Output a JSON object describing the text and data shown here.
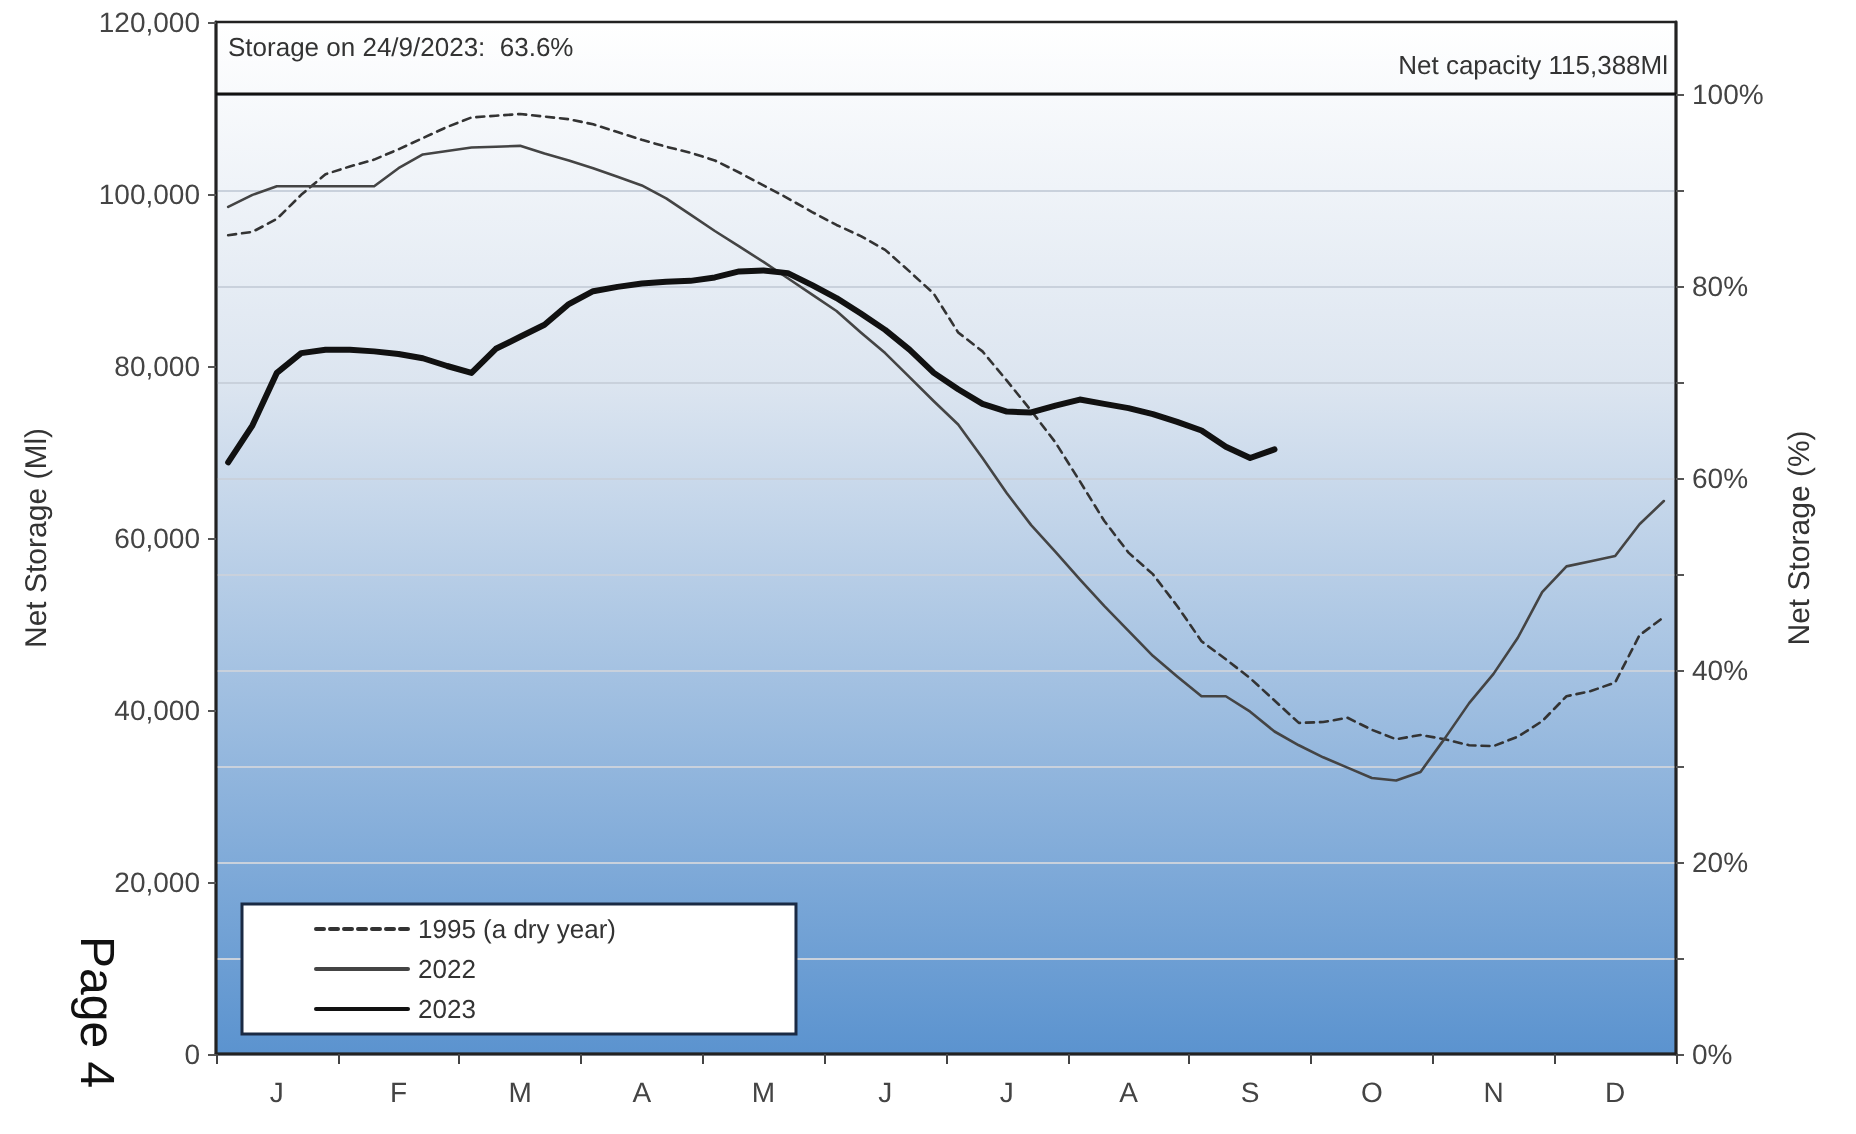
{
  "chart_data": {
    "type": "line",
    "ylabel": "Net Storage (Ml)",
    "y2label": "Net Storage (%)",
    "annotations": [
      "Storage on 24/9/2023:  63.6%",
      "Page 4"
    ],
    "categories": [
      null,
      null,
      "J",
      null,
      null,
      null,
      null,
      "F",
      null,
      null,
      null,
      null,
      "M",
      null,
      null,
      null,
      null,
      "A",
      null,
      null,
      null,
      null,
      "M",
      null,
      null,
      null,
      null,
      "J",
      null,
      null,
      null,
      null,
      "J",
      null,
      null,
      null,
      null,
      "A",
      null,
      null,
      null,
      null,
      "S",
      null,
      null,
      null,
      null,
      "O",
      null,
      null,
      null,
      null,
      "N",
      null,
      null,
      null,
      null,
      "D",
      null,
      null
    ],
    "ylim": [
      0,
      120000
    ],
    "yticks": [
      0,
      {
        "value": 20000,
        "label": "20,000"
      },
      {
        "value": 40000,
        "label": "40,000"
      },
      {
        "value": 60000,
        "label": "60,000"
      },
      {
        "value": 80000,
        "label": "80,000"
      },
      {
        "value": 100000,
        "label": "100,000"
      },
      {
        "value": 120000,
        "label": "120,000"
      }
    ],
    "y2lim": [
      0,
      107.5
    ],
    "y2ticks": [
      {
        "value": 0,
        "label": "0%"
      },
      {
        "value": 10,
        "label": null
      },
      {
        "value": 20,
        "label": "20%"
      },
      {
        "value": 30,
        "label": null
      },
      {
        "value": 40,
        "label": "40%"
      },
      {
        "value": 50,
        "label": null
      },
      {
        "value": 60,
        "label": "60%"
      },
      {
        "value": 70,
        "label": null
      },
      {
        "value": 80,
        "label": "80%"
      },
      {
        "value": 90,
        "label": null
      },
      {
        "value": 100,
        "label": "100%"
      }
    ],
    "ref_lines": [
      {
        "axis": "y2",
        "value": 100,
        "label": "Net capacity 115,388Ml",
        "color": "#111111"
      }
    ],
    "grid": true,
    "legend": "bottom left",
    "series": [
      {
        "name": "1995 (a dry year)",
        "color": "#333333",
        "line_style": "dashed",
        "values": [
          95200,
          95600,
          97100,
          99900,
          102300,
          103200,
          104000,
          105200,
          106500,
          107800,
          108900,
          109100,
          109300,
          109000,
          108700,
          108100,
          107200,
          106300,
          105500,
          104800,
          103900,
          102500,
          101000,
          99500,
          97900,
          96400,
          95100,
          93500,
          91000,
          88400,
          83900,
          81700,
          78300,
          74800,
          71100,
          66600,
          62000,
          58300,
          55800,
          52100,
          48000,
          45900,
          43700,
          41100,
          38500,
          38600,
          39100,
          37700,
          36600,
          37100,
          36600,
          35900,
          35800,
          36900,
          38700,
          41600,
          42200,
          43200,
          48700,
          50800
        ]
      },
      {
        "name": "2022",
        "color": "#444444",
        "line_style": "solid",
        "values": [
          98500,
          99900,
          100900,
          100900,
          100900,
          100900,
          100900,
          103000,
          104600,
          105000,
          105400,
          105500,
          105600,
          104700,
          103900,
          103000,
          102000,
          101000,
          99500,
          97600,
          95700,
          93900,
          92100,
          90200,
          88300,
          86400,
          83900,
          81500,
          78700,
          75900,
          73200,
          69300,
          65200,
          61500,
          58400,
          55200,
          52100,
          49200,
          46300,
          43900,
          41600,
          41600,
          39800,
          37500,
          35900,
          34500,
          33300,
          32100,
          31800,
          32800,
          36700,
          40800,
          44200,
          48400,
          53700,
          56700,
          57300,
          57900,
          61600,
          64300
        ]
      },
      {
        "name": "2023",
        "color": "#111111",
        "line_style": "solid",
        "values": [
          68800,
          73100,
          79200,
          81500,
          81900,
          81900,
          81700,
          81400,
          80900,
          80000,
          79200,
          82000,
          83400,
          84800,
          87200,
          88700,
          89200,
          89600,
          89800,
          89900,
          90300,
          91000,
          91100,
          90800,
          89400,
          87900,
          86100,
          84200,
          81900,
          79200,
          77300,
          75600,
          74700,
          74600,
          75400,
          76100,
          75600,
          75100,
          74400,
          73500,
          72500,
          70600,
          69300,
          70300,
          null,
          null,
          null,
          null,
          null,
          null,
          null,
          null,
          null,
          null,
          null,
          null,
          null,
          null,
          null,
          null
        ]
      }
    ]
  }
}
